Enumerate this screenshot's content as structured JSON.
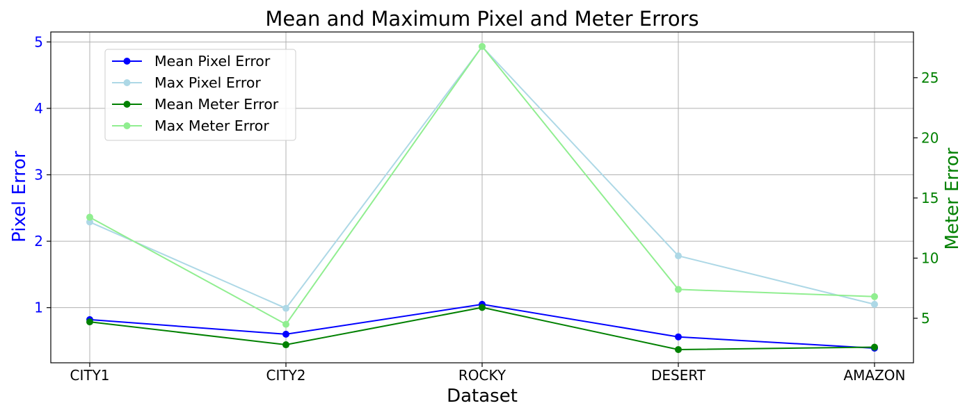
{
  "chart_data": {
    "type": "line",
    "title": "Mean and Maximum Pixel and Meter Errors",
    "xlabel": "Dataset",
    "ylabel_left": "Pixel Error",
    "ylabel_right": "Meter Error",
    "categories": [
      "CITY1",
      "CITY2",
      "ROCKY",
      "DESERT",
      "AMAZON"
    ],
    "ylim_left": [
      0.17,
      5.15
    ],
    "ylim_right": [
      1.3,
      28.8
    ],
    "yticks_left": [
      1,
      2,
      3,
      4,
      5
    ],
    "yticks_right": [
      5,
      10,
      15,
      20,
      25
    ],
    "grid": true,
    "legend_position": "upper-left",
    "series": [
      {
        "name": "Mean Pixel Error",
        "axis": "left",
        "color": "#0000ff",
        "values": [
          0.82,
          0.6,
          1.05,
          0.56,
          0.39
        ]
      },
      {
        "name": "Max Pixel Error",
        "axis": "left",
        "color": "#add8e6",
        "values": [
          2.29,
          0.99,
          4.93,
          1.78,
          1.05
        ]
      },
      {
        "name": "Mean Meter Error",
        "axis": "right",
        "color": "#008000",
        "values": [
          4.7,
          2.8,
          5.9,
          2.4,
          2.6
        ]
      },
      {
        "name": "Max Meter Error",
        "axis": "right",
        "color": "#90ee90",
        "values": [
          13.4,
          4.5,
          27.6,
          7.4,
          6.8
        ]
      }
    ],
    "colors": {
      "left_axis": "#0000ff",
      "right_axis": "#008000"
    }
  }
}
